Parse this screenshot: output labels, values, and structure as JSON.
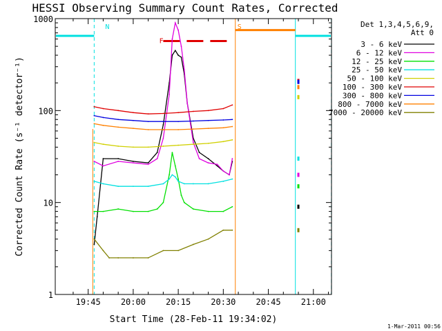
{
  "chart_data": {
    "type": "line",
    "title": "HESSI Observing Summary Count Rates, Corrected",
    "xlabel": "Start Time (28-Feb-11 19:34:02)",
    "ylabel": "Corrected Count Rate (s⁻¹ detector⁻¹)",
    "y_scale": "log",
    "ylim": [
      1,
      1000
    ],
    "xlim_minutes_from_19_34_02": [
      0,
      92
    ],
    "x_ticks": [
      {
        "label": "19:45",
        "value": "19:45"
      },
      {
        "label": "20:00",
        "value": "20:00"
      },
      {
        "label": "20:15",
        "value": "20:15"
      },
      {
        "label": "20:30",
        "value": "20:30"
      },
      {
        "label": "20:45",
        "value": "20:45"
      },
      {
        "label": "21:00",
        "value": "21:00"
      }
    ],
    "y_ticks": [
      {
        "label": "1",
        "value": 1
      },
      {
        "label": "10",
        "value": 10
      },
      {
        "label": "100",
        "value": 100
      },
      {
        "label": "1000",
        "value": 1000
      }
    ],
    "legend": {
      "placement": "right",
      "header": [
        "Det 1,3,4,5,6,9,",
        "Att 0"
      ],
      "entries": [
        {
          "label": "3 - 6 keV",
          "color": "#000000"
        },
        {
          "label": "6 - 12 keV",
          "color": "#e000e0"
        },
        {
          "label": "12 - 25 keV",
          "color": "#00e000"
        },
        {
          "label": "25 - 50 keV",
          "color": "#00e0e0"
        },
        {
          "label": "50 - 100 keV",
          "color": "#d0d000"
        },
        {
          "label": "100 - 300 keV",
          "color": "#e00000"
        },
        {
          "label": "300 - 800 keV",
          "color": "#0000e0"
        },
        {
          "label": "800 - 7000 keV",
          "color": "#ff8000"
        },
        {
          "label": "7000 - 20000 keV",
          "color": "#808000"
        }
      ]
    },
    "annotations": [
      {
        "text": "N",
        "color": "#00e0e0"
      },
      {
        "text": "F",
        "color": "#e00000"
      },
      {
        "text": "S",
        "color": "#ff8000"
      }
    ],
    "night_segments": [
      {
        "start": "19:34",
        "end": "19:47",
        "level": 650
      },
      {
        "start": "20:54",
        "end": "21:06",
        "level": 650
      }
    ],
    "saa_segment": {
      "start": "20:34",
      "end": "20:54",
      "level": 750
    },
    "flare_flag": {
      "start": "20:10",
      "end": "20:33",
      "level": 570
    },
    "series": [
      {
        "name": "3 - 6 keV",
        "color": "#000000",
        "x": [
          "19:47",
          "19:48",
          "19:50",
          "19:55",
          "20:00",
          "20:05",
          "20:08",
          "20:10",
          "20:12",
          "20:13",
          "20:14",
          "20:15",
          "20:16",
          "20:17",
          "20:18",
          "20:20",
          "20:22",
          "20:25",
          "20:28",
          "20:30",
          "20:32",
          "20:33"
        ],
        "y": [
          3.5,
          7,
          30,
          30,
          28,
          27,
          35,
          70,
          200,
          400,
          450,
          400,
          380,
          250,
          120,
          50,
          35,
          30,
          25,
          22,
          20,
          28
        ]
      },
      {
        "name": "6 - 12 keV",
        "color": "#e000e0",
        "x": [
          "19:47",
          "19:50",
          "19:55",
          "20:00",
          "20:05",
          "20:08",
          "20:10",
          "20:12",
          "20:13",
          "20:14",
          "20:15",
          "20:16",
          "20:17",
          "20:18",
          "20:20",
          "20:22",
          "20:25",
          "20:28",
          "20:30",
          "20:32",
          "20:33"
        ],
        "y": [
          28,
          25,
          28,
          27,
          26,
          30,
          50,
          150,
          600,
          900,
          750,
          500,
          280,
          120,
          45,
          30,
          27,
          26,
          22,
          20,
          30
        ]
      },
      {
        "name": "12 - 25 keV",
        "color": "#00e000",
        "x": [
          "19:47",
          "19:50",
          "19:55",
          "20:00",
          "20:05",
          "20:08",
          "20:10",
          "20:12",
          "20:13",
          "20:14",
          "20:15",
          "20:16",
          "20:17",
          "20:20",
          "20:25",
          "20:30",
          "20:33"
        ],
        "y": [
          8,
          8,
          8.5,
          8,
          8,
          8.5,
          10,
          20,
          35,
          25,
          18,
          12,
          10,
          8.5,
          8,
          8,
          9
        ]
      },
      {
        "name": "25 - 50 keV",
        "color": "#00e0e0",
        "x": [
          "19:47",
          "19:50",
          "19:55",
          "20:00",
          "20:05",
          "20:10",
          "20:12",
          "20:13",
          "20:14",
          "20:15",
          "20:17",
          "20:20",
          "20:25",
          "20:30",
          "20:33"
        ],
        "y": [
          17,
          16,
          15,
          15,
          15,
          16,
          18,
          20,
          19,
          17,
          16,
          16,
          16,
          17,
          18
        ]
      },
      {
        "name": "50 - 100 keV",
        "color": "#d0d000",
        "x": [
          "19:47",
          "19:50",
          "19:55",
          "20:00",
          "20:05",
          "20:10",
          "20:15",
          "20:20",
          "20:25",
          "20:30",
          "20:33"
        ],
        "y": [
          45,
          43,
          41,
          40,
          40,
          41,
          42,
          43,
          44,
          46,
          48
        ]
      },
      {
        "name": "100 - 300 keV",
        "color": "#e00000",
        "x": [
          "19:47",
          "19:50",
          "19:55",
          "20:00",
          "20:05",
          "20:10",
          "20:15",
          "20:20",
          "20:25",
          "20:30",
          "20:33"
        ],
        "y": [
          110,
          105,
          100,
          95,
          92,
          93,
          95,
          98,
          100,
          105,
          115
        ]
      },
      {
        "name": "300 - 800 keV",
        "color": "#0000e0",
        "x": [
          "19:47",
          "19:50",
          "19:55",
          "20:00",
          "20:05",
          "20:10",
          "20:15",
          "20:20",
          "20:25",
          "20:30",
          "20:33"
        ],
        "y": [
          88,
          84,
          80,
          78,
          76,
          76,
          76,
          77,
          78,
          79,
          80
        ]
      },
      {
        "name": "800 - 7000 keV",
        "color": "#ff8000",
        "x": [
          "19:47",
          "19:50",
          "19:55",
          "20:00",
          "20:05",
          "20:10",
          "20:15",
          "20:20",
          "20:25",
          "20:30",
          "20:33"
        ],
        "y": [
          72,
          69,
          66,
          64,
          62,
          62,
          62,
          63,
          64,
          65,
          67
        ]
      },
      {
        "name": "7000 - 20000 keV",
        "color": "#808000",
        "x": [
          "19:47",
          "19:50",
          "19:52",
          "19:55",
          "20:00",
          "20:05",
          "20:10",
          "20:15",
          "20:20",
          "20:25",
          "20:30",
          "20:33"
        ],
        "y": [
          4,
          3,
          2.5,
          2.5,
          2.5,
          2.5,
          3,
          3,
          3.5,
          4,
          5,
          5
        ]
      }
    ],
    "post_saa_points": {
      "x": "20:55",
      "values": [
        {
          "band": "3 - 6 keV",
          "y": 9
        },
        {
          "band": "6 - 12 keV",
          "y": 20
        },
        {
          "band": "12 - 25 keV",
          "y": 15
        },
        {
          "band": "25 - 50 keV",
          "y": 30
        },
        {
          "band": "50 - 100 keV",
          "y": 140
        },
        {
          "band": "100 - 300 keV",
          "y": 210
        },
        {
          "band": "300 - 800 keV",
          "y": 205
        },
        {
          "band": "800 - 7000 keV",
          "y": 180
        },
        {
          "band": "7000 - 20000 keV",
          "y": 5
        }
      ]
    }
  },
  "footer": {
    "timestamp": "1-Mar-2011 00:56"
  }
}
